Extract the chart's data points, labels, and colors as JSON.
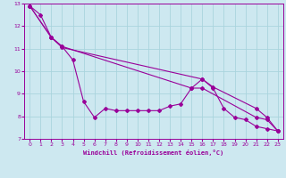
{
  "bg_color": "#cde8f0",
  "line_color": "#990099",
  "grid_color": "#aad4dd",
  "xlabel": "Windchill (Refroidissement éolien,°C)",
  "xlim": [
    -0.5,
    23.5
  ],
  "ylim": [
    7,
    13
  ],
  "yticks": [
    7,
    8,
    9,
    10,
    11,
    12,
    13
  ],
  "xticks": [
    0,
    1,
    2,
    3,
    4,
    5,
    6,
    7,
    8,
    9,
    10,
    11,
    12,
    13,
    14,
    15,
    16,
    17,
    18,
    19,
    20,
    21,
    22,
    23
  ],
  "series1_x": [
    0,
    1,
    2,
    3,
    4,
    5,
    6,
    7,
    8,
    9,
    10,
    11,
    12,
    13,
    14,
    15,
    16,
    17,
    18,
    19,
    20,
    21,
    22,
    23
  ],
  "series1_y": [
    12.9,
    12.5,
    11.5,
    11.1,
    10.5,
    8.65,
    7.95,
    8.35,
    8.25,
    8.25,
    8.25,
    8.25,
    8.25,
    8.45,
    8.55,
    9.25,
    9.65,
    9.25,
    8.35,
    7.95,
    7.85,
    7.55,
    7.45,
    7.35
  ],
  "series2_x": [
    0,
    2,
    3,
    15,
    16,
    21,
    22,
    23
  ],
  "series2_y": [
    12.9,
    11.5,
    11.1,
    9.25,
    9.25,
    7.95,
    7.85,
    7.35
  ],
  "series3_x": [
    0,
    2,
    3,
    16,
    17,
    21,
    22,
    23
  ],
  "series3_y": [
    12.9,
    11.5,
    11.05,
    9.65,
    9.3,
    8.35,
    7.95,
    7.35
  ]
}
